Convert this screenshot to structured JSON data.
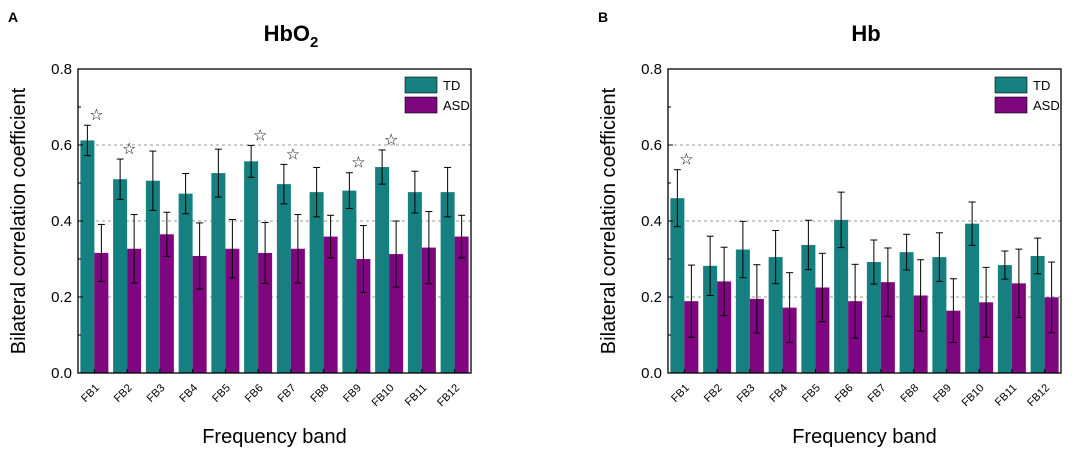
{
  "figure": {
    "colors": {
      "TD": "#167f7f",
      "ASD": "#7e067e",
      "axis": "#000000",
      "grid": "#999999"
    }
  },
  "chart_data": [
    {
      "type": "bar",
      "panel_letter": "A",
      "title_main": "HbO",
      "title_sub": "2",
      "xlabel": "Frequency band",
      "ylabel": "Bilateral correlation coefficient",
      "ylim": [
        0,
        0.8
      ],
      "yticks": [
        "0.0",
        "0.2",
        "0.4",
        "0.6",
        "0.8"
      ],
      "ytick_values": [
        0,
        0.2,
        0.4,
        0.6,
        0.8
      ],
      "grid_values": [
        0.2,
        0.4,
        0.6
      ],
      "legend_position": "top-right",
      "categories": [
        "FB1",
        "FB2",
        "FB3",
        "FB4",
        "FB5",
        "FB6",
        "FB7",
        "FB8",
        "FB9",
        "FB10",
        "FB11",
        "FB12"
      ],
      "series": [
        {
          "name": "TD",
          "values": [
            0.612,
            0.51,
            0.506,
            0.472,
            0.526,
            0.557,
            0.497,
            0.476,
            0.48,
            0.542,
            0.476,
            0.476
          ],
          "errors": [
            0.04,
            0.053,
            0.078,
            0.053,
            0.063,
            0.042,
            0.052,
            0.065,
            0.047,
            0.045,
            0.055,
            0.065
          ]
        },
        {
          "name": "ASD",
          "values": [
            0.316,
            0.327,
            0.365,
            0.308,
            0.327,
            0.316,
            0.327,
            0.359,
            0.3,
            0.313,
            0.33,
            0.359
          ],
          "errors": [
            0.075,
            0.09,
            0.058,
            0.087,
            0.077,
            0.08,
            0.09,
            0.056,
            0.088,
            0.087,
            0.095,
            0.056
          ]
        }
      ],
      "significant_marker": "☆",
      "significant": [
        true,
        true,
        false,
        false,
        false,
        true,
        true,
        false,
        true,
        true,
        false,
        false
      ]
    },
    {
      "type": "bar",
      "panel_letter": "B",
      "title_main": "Hb",
      "title_sub": "",
      "xlabel": "Frequency band",
      "ylabel": "Bilateral correlation coefficient",
      "ylim": [
        0,
        0.8
      ],
      "yticks": [
        "0.0",
        "0.2",
        "0.4",
        "0.6",
        "0.8"
      ],
      "ytick_values": [
        0,
        0.2,
        0.4,
        0.6,
        0.8
      ],
      "grid_values": [
        0.2,
        0.4,
        0.6
      ],
      "legend_position": "top-right",
      "categories": [
        "FB1",
        "FB2",
        "FB3",
        "FB4",
        "FB5",
        "FB6",
        "FB7",
        "FB8",
        "FB9",
        "FB10",
        "FB11",
        "FB12"
      ],
      "series": [
        {
          "name": "TD",
          "values": [
            0.46,
            0.282,
            0.325,
            0.305,
            0.337,
            0.403,
            0.292,
            0.318,
            0.305,
            0.393,
            0.284,
            0.308
          ],
          "errors": [
            0.075,
            0.078,
            0.074,
            0.07,
            0.065,
            0.073,
            0.058,
            0.047,
            0.064,
            0.057,
            0.037,
            0.047
          ]
        },
        {
          "name": "ASD",
          "values": [
            0.189,
            0.241,
            0.195,
            0.172,
            0.225,
            0.189,
            0.239,
            0.204,
            0.164,
            0.186,
            0.236,
            0.199
          ],
          "errors": [
            0.095,
            0.09,
            0.09,
            0.092,
            0.09,
            0.097,
            0.09,
            0.094,
            0.084,
            0.092,
            0.09,
            0.093
          ]
        }
      ],
      "significant_marker": "☆",
      "significant": [
        true,
        false,
        false,
        false,
        false,
        false,
        false,
        false,
        false,
        false,
        false,
        false
      ]
    }
  ]
}
